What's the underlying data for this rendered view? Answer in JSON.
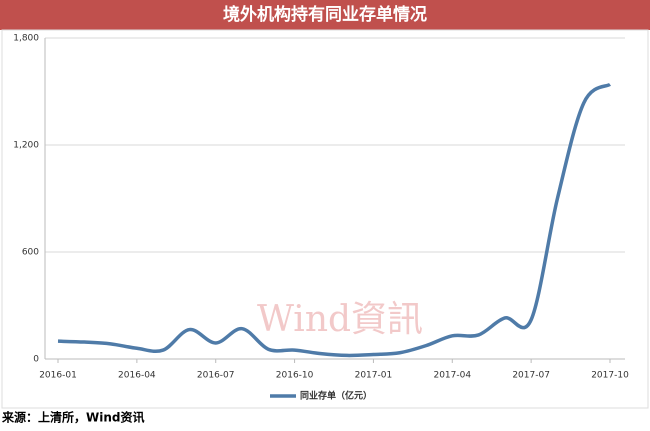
{
  "chart_data": {
    "type": "line",
    "title": "境外机构持有同业存单情况",
    "categories": [
      "2016-01",
      null,
      null,
      "2016-04",
      null,
      null,
      "2016-07",
      null,
      null,
      "2016-10",
      null,
      null,
      "2017-01",
      null,
      null,
      "2017-04",
      null,
      null,
      "2017-07",
      null,
      null,
      "2017-10"
    ],
    "series": [
      {
        "name": "同业存单（亿元）",
        "color": "#4f7ba8",
        "values": [
          100,
          95,
          85,
          60,
          50,
          165,
          90,
          170,
          55,
          50,
          30,
          20,
          25,
          35,
          75,
          130,
          135,
          230,
          220,
          900,
          1435,
          1540
        ]
      }
    ],
    "ylim": [
      0,
      1800
    ],
    "yticks": [
      0,
      600,
      {
        "value": 1200,
        "label": "1,200"
      },
      {
        "value": 1800,
        "label": "1,800"
      }
    ],
    "grid": true,
    "legend": "bottom",
    "watermark": "Wind資訊",
    "source": "来源：上清所，Wind资讯"
  }
}
